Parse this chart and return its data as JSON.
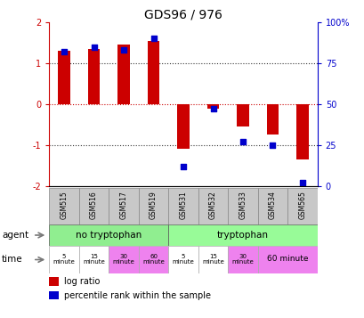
{
  "title": "GDS96 / 976",
  "samples": [
    "GSM515",
    "GSM516",
    "GSM517",
    "GSM519",
    "GSM531",
    "GSM532",
    "GSM533",
    "GSM534",
    "GSM565"
  ],
  "log_ratio": [
    1.3,
    1.35,
    1.45,
    1.55,
    -1.1,
    -0.1,
    -0.55,
    -0.75,
    -1.35
  ],
  "percentile": [
    82,
    85,
    83,
    90,
    12,
    47,
    27,
    25,
    2
  ],
  "bar_color": "#cc0000",
  "dot_color": "#0000cc",
  "ylim": [
    -2,
    2
  ],
  "y2lim": [
    0,
    100
  ],
  "yticks": [
    -2,
    -1,
    0,
    1,
    2
  ],
  "y2ticks": [
    0,
    25,
    50,
    75,
    100
  ],
  "y2ticklabels": [
    "0",
    "25",
    "50",
    "75",
    "100%"
  ],
  "hline_y": [
    1,
    -1
  ],
  "hline_color": "#333333",
  "hline_style": ":",
  "zero_line_color": "#cc0000",
  "zero_line_style": ":",
  "agent_labels": [
    "no tryptophan",
    "tryptophan"
  ],
  "agent_color_notryp": "#90EE90",
  "agent_color_tryp": "#98FB98",
  "time_color_white": "#ffffff",
  "time_color_pink": "#ee82ee",
  "gsm_bg": "#c8c8c8",
  "gsm_border": "#888888",
  "background": "#ffffff",
  "legend_red": "#cc0000",
  "legend_blue": "#0000cc",
  "bar_width": 0.4
}
